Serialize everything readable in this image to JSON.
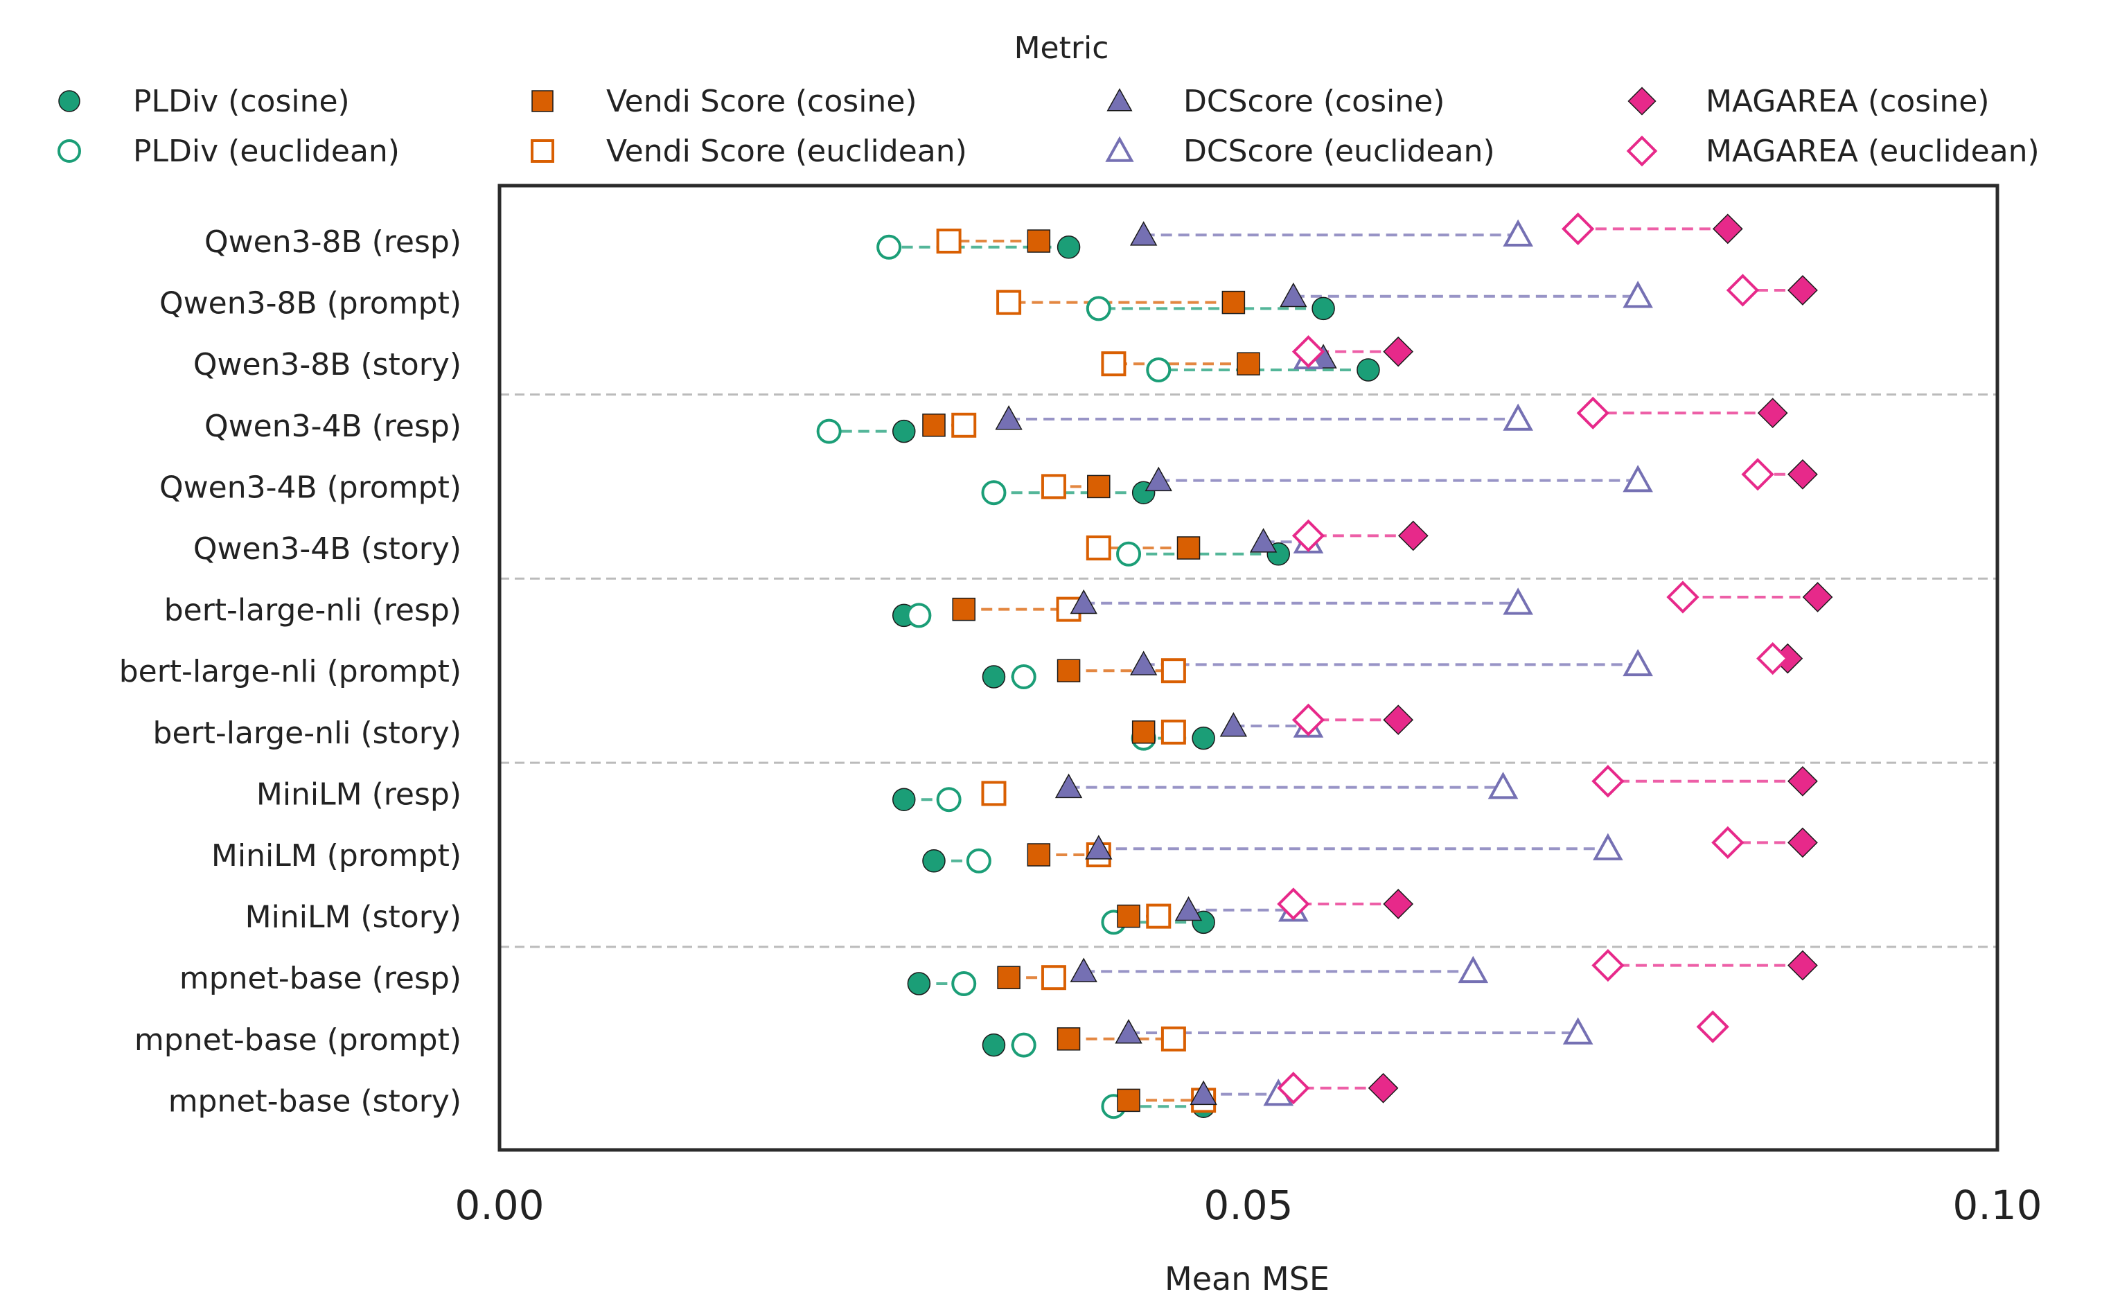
{
  "chart_data": {
    "type": "scatter",
    "xlabel": "Mean MSE",
    "xlim": [
      0.0,
      0.1
    ],
    "xticks": [
      "0.00",
      "0.05",
      "0.10"
    ],
    "xtick_values": [
      0.0,
      0.05,
      0.1
    ],
    "legend_title": "Metric",
    "legend_position": "top",
    "grid": false,
    "group_separators": true,
    "categories": [
      "Qwen3-8B (resp)",
      "Qwen3-8B (prompt)",
      "Qwen3-8B (story)",
      "Qwen3-4B (resp)",
      "Qwen3-4B (prompt)",
      "Qwen3-4B (story)",
      "bert-large-nli (resp)",
      "bert-large-nli (prompt)",
      "bert-large-nli (story)",
      "MiniLM (resp)",
      "MiniLM (prompt)",
      "MiniLM (story)",
      "mpnet-base (resp)",
      "mpnet-base (prompt)",
      "mpnet-base (story)"
    ],
    "series": [
      {
        "name": "PLDiv (cosine)",
        "marker": "circle",
        "filled": true,
        "color": "#1b9e77",
        "offset": 0.1,
        "values": [
          0.038,
          0.055,
          0.058,
          0.027,
          0.043,
          0.052,
          0.027,
          0.033,
          0.047,
          0.027,
          0.029,
          0.047,
          0.028,
          0.033,
          0.047
        ]
      },
      {
        "name": "PLDiv (euclidean)",
        "marker": "circle",
        "filled": false,
        "color": "#1b9e77",
        "offset": 0.1,
        "values": [
          0.026,
          0.04,
          0.044,
          0.022,
          0.033,
          0.042,
          0.028,
          0.035,
          0.043,
          0.03,
          0.032,
          0.041,
          0.031,
          0.035,
          0.041
        ]
      },
      {
        "name": "Vendi Score (cosine)",
        "marker": "square",
        "filled": true,
        "color": "#d95f02",
        "offset": 0.0,
        "values": [
          0.036,
          0.049,
          0.05,
          0.029,
          0.04,
          0.046,
          0.031,
          0.038,
          0.043,
          0.033,
          0.036,
          0.042,
          0.034,
          0.038,
          0.042
        ]
      },
      {
        "name": "Vendi Score (euclidean)",
        "marker": "square",
        "filled": false,
        "color": "#d95f02",
        "offset": 0.0,
        "values": [
          0.03,
          0.034,
          0.041,
          0.031,
          0.037,
          0.04,
          0.038,
          0.045,
          0.045,
          0.033,
          0.04,
          0.044,
          0.037,
          0.045,
          0.047
        ]
      },
      {
        "name": "DCScore (cosine)",
        "marker": "triangle",
        "filled": true,
        "color": "#7570b3",
        "offset": -0.1,
        "values": [
          0.043,
          0.053,
          0.055,
          0.034,
          0.044,
          0.051,
          0.039,
          0.043,
          0.049,
          0.038,
          0.04,
          0.046,
          0.039,
          0.042,
          0.047
        ]
      },
      {
        "name": "DCScore (euclidean)",
        "marker": "triangle",
        "filled": false,
        "color": "#7570b3",
        "offset": -0.1,
        "values": [
          0.068,
          0.076,
          0.054,
          0.068,
          0.076,
          0.054,
          0.068,
          0.076,
          0.054,
          0.067,
          0.074,
          0.053,
          0.065,
          0.072,
          0.052
        ]
      },
      {
        "name": "MAGAREA (cosine)",
        "marker": "diamond",
        "filled": true,
        "color": "#e7298a",
        "offset": -0.2,
        "values": [
          0.082,
          0.087,
          0.06,
          0.085,
          0.087,
          0.061,
          0.088,
          0.086,
          0.06,
          0.087,
          0.087,
          0.06,
          0.087,
          0.081,
          0.059
        ]
      },
      {
        "name": "MAGAREA (euclidean)",
        "marker": "diamond",
        "filled": false,
        "color": "#e7298a",
        "offset": -0.2,
        "values": [
          0.072,
          0.083,
          0.054,
          0.073,
          0.084,
          0.054,
          0.079,
          0.085,
          0.054,
          0.074,
          0.082,
          0.053,
          0.074,
          0.081,
          0.053
        ]
      }
    ],
    "pairs": [
      {
        "metric": "PLDiv",
        "cosine": 0,
        "euclidean": 1
      },
      {
        "metric": "Vendi Score",
        "cosine": 2,
        "euclidean": 3
      },
      {
        "metric": "DCScore",
        "cosine": 4,
        "euclidean": 5
      },
      {
        "metric": "MAGAREA",
        "cosine": 6,
        "euclidean": 7
      }
    ]
  }
}
